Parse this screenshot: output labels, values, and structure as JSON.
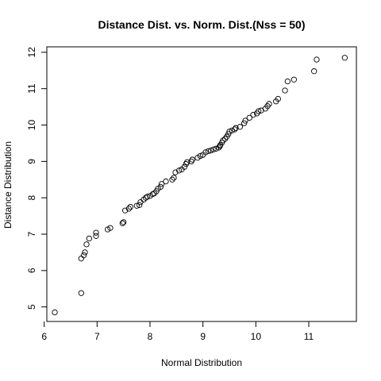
{
  "chart_data": {
    "type": "scatter",
    "title": "Distance Dist. vs. Norm. Dist.(Nss = 50)",
    "xlabel": "Normal Distribution",
    "ylabel": "Distance Distribution",
    "xlim": [
      6.05,
      11.9
    ],
    "ylim": [
      4.6,
      12.15
    ],
    "xticks": [
      6,
      7,
      8,
      9,
      10,
      11
    ],
    "yticks": [
      5,
      6,
      7,
      8,
      9,
      10,
      11,
      12
    ],
    "grid": false,
    "marker": "open-circle",
    "points": [
      [
        6.2,
        4.85
      ],
      [
        6.7,
        5.38
      ],
      [
        6.7,
        6.33
      ],
      [
        6.75,
        6.42
      ],
      [
        6.77,
        6.5
      ],
      [
        6.8,
        6.72
      ],
      [
        6.85,
        6.88
      ],
      [
        6.98,
        6.95
      ],
      [
        6.98,
        7.04
      ],
      [
        7.2,
        7.13
      ],
      [
        7.25,
        7.17
      ],
      [
        7.48,
        7.3
      ],
      [
        7.5,
        7.33
      ],
      [
        7.53,
        7.65
      ],
      [
        7.6,
        7.7
      ],
      [
        7.63,
        7.75
      ],
      [
        7.75,
        7.78
      ],
      [
        7.8,
        7.8
      ],
      [
        7.82,
        7.88
      ],
      [
        7.88,
        7.95
      ],
      [
        7.92,
        8.0
      ],
      [
        7.95,
        8.03
      ],
      [
        8.0,
        8.05
      ],
      [
        8.05,
        8.1
      ],
      [
        8.08,
        8.12
      ],
      [
        8.12,
        8.18
      ],
      [
        8.15,
        8.25
      ],
      [
        8.2,
        8.3
      ],
      [
        8.22,
        8.38
      ],
      [
        8.3,
        8.45
      ],
      [
        8.42,
        8.5
      ],
      [
        8.45,
        8.55
      ],
      [
        8.48,
        8.7
      ],
      [
        8.55,
        8.75
      ],
      [
        8.6,
        8.78
      ],
      [
        8.65,
        8.85
      ],
      [
        8.68,
        8.93
      ],
      [
        8.7,
        8.98
      ],
      [
        8.78,
        9.0
      ],
      [
        8.8,
        9.05
      ],
      [
        8.9,
        9.1
      ],
      [
        8.95,
        9.15
      ],
      [
        9.0,
        9.18
      ],
      [
        9.05,
        9.25
      ],
      [
        9.1,
        9.28
      ],
      [
        9.15,
        9.3
      ],
      [
        9.2,
        9.33
      ],
      [
        9.25,
        9.35
      ],
      [
        9.3,
        9.38
      ],
      [
        9.32,
        9.42
      ],
      [
        9.33,
        9.45
      ],
      [
        9.36,
        9.52
      ],
      [
        9.38,
        9.58
      ],
      [
        9.42,
        9.62
      ],
      [
        9.45,
        9.68
      ],
      [
        9.48,
        9.75
      ],
      [
        9.5,
        9.82
      ],
      [
        9.55,
        9.85
      ],
      [
        9.6,
        9.88
      ],
      [
        9.62,
        9.92
      ],
      [
        9.7,
        9.95
      ],
      [
        9.78,
        10.05
      ],
      [
        9.8,
        10.12
      ],
      [
        9.88,
        10.2
      ],
      [
        9.95,
        10.28
      ],
      [
        10.02,
        10.32
      ],
      [
        10.05,
        10.38
      ],
      [
        10.1,
        10.4
      ],
      [
        10.18,
        10.45
      ],
      [
        10.22,
        10.52
      ],
      [
        10.25,
        10.58
      ],
      [
        10.38,
        10.65
      ],
      [
        10.42,
        10.72
      ],
      [
        10.55,
        10.95
      ],
      [
        10.6,
        11.2
      ],
      [
        10.72,
        11.25
      ],
      [
        11.1,
        11.48
      ],
      [
        11.15,
        11.8
      ],
      [
        11.68,
        11.85
      ]
    ]
  }
}
